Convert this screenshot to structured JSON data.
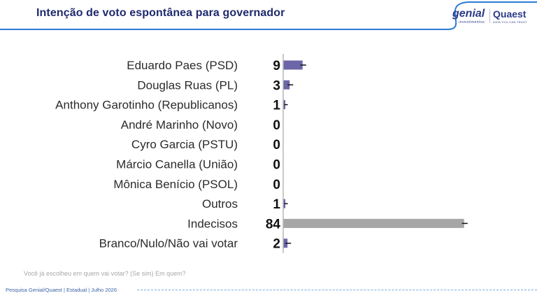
{
  "header": {
    "title": "Intenção de voto espontânea para governador",
    "logo_genial": "genial",
    "logo_genial_sub": "investimentos",
    "logo_quaest": "Quaest",
    "logo_quaest_sub": "DATA YOU CAN TRUST"
  },
  "colors": {
    "title": "#1f2a6e",
    "bar_candidate": "#6b66a8",
    "bar_undecided": "#a6a6a6",
    "header_line": "#2e7bd6"
  },
  "chart_data": {
    "type": "bar",
    "orientation": "horizontal",
    "categories": [
      "Eduardo Paes (PSD)",
      "Douglas Ruas (PL)",
      "Anthony Garotinho (Republicanos)",
      "André Marinho (Novo)",
      "Cyro Garcia (PSTU)",
      "Márcio Canella (União)",
      "Mônica Benício (PSOL)",
      "Outros",
      "Indecisos",
      "Branco/Nulo/Não vai votar"
    ],
    "values": [
      9,
      3,
      1,
      0,
      0,
      0,
      0,
      1,
      84,
      2
    ],
    "error_margin": 2,
    "xlim": [
      0,
      100
    ],
    "grid": false,
    "legend": "none"
  },
  "question": "Você já escolheu em quem vai votar? (Se sim) Em quem?",
  "footer": "Pesquisa Genial/Quaest | Estadual | Julho 2026"
}
